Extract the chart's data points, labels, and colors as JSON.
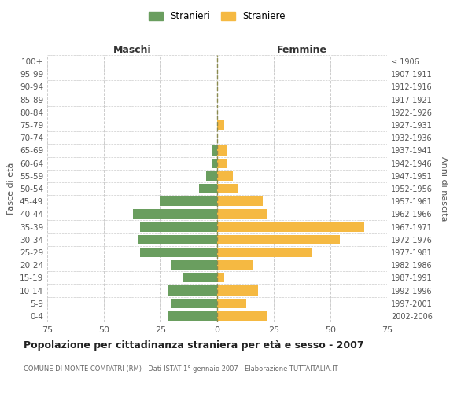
{
  "age_groups": [
    "100+",
    "95-99",
    "90-94",
    "85-89",
    "80-84",
    "75-79",
    "70-74",
    "65-69",
    "60-64",
    "55-59",
    "50-54",
    "45-49",
    "40-44",
    "35-39",
    "30-34",
    "25-29",
    "20-24",
    "15-19",
    "10-14",
    "5-9",
    "0-4"
  ],
  "birth_years": [
    "≤ 1906",
    "1907-1911",
    "1912-1916",
    "1917-1921",
    "1922-1926",
    "1927-1931",
    "1932-1936",
    "1937-1941",
    "1942-1946",
    "1947-1951",
    "1952-1956",
    "1957-1961",
    "1962-1966",
    "1967-1971",
    "1972-1976",
    "1977-1981",
    "1982-1986",
    "1987-1991",
    "1992-1996",
    "1997-2001",
    "2002-2006"
  ],
  "maschi": [
    0,
    0,
    0,
    0,
    0,
    0,
    0,
    2,
    2,
    5,
    8,
    25,
    37,
    34,
    35,
    34,
    20,
    15,
    22,
    20,
    22
  ],
  "femmine": [
    0,
    0,
    0,
    0,
    0,
    3,
    0,
    4,
    4,
    7,
    9,
    20,
    22,
    65,
    54,
    42,
    16,
    3,
    18,
    13,
    22
  ],
  "maschi_color": "#6a9e5f",
  "femmine_color": "#f5b942",
  "dashed_line_color": "#8b8b4f",
  "grid_color": "#cccccc",
  "background_color": "#ffffff",
  "xlim": 75,
  "title": "Popolazione per cittadinanza straniera per età e sesso - 2007",
  "subtitle": "COMUNE DI MONTE COMPATRI (RM) - Dati ISTAT 1° gennaio 2007 - Elaborazione TUTTAITALIA.IT",
  "xlabel_left": "Maschi",
  "xlabel_right": "Femmine",
  "ylabel_left": "Fasce di età",
  "ylabel_right": "Anni di nascita",
  "legend_maschi": "Stranieri",
  "legend_femmine": "Straniere"
}
